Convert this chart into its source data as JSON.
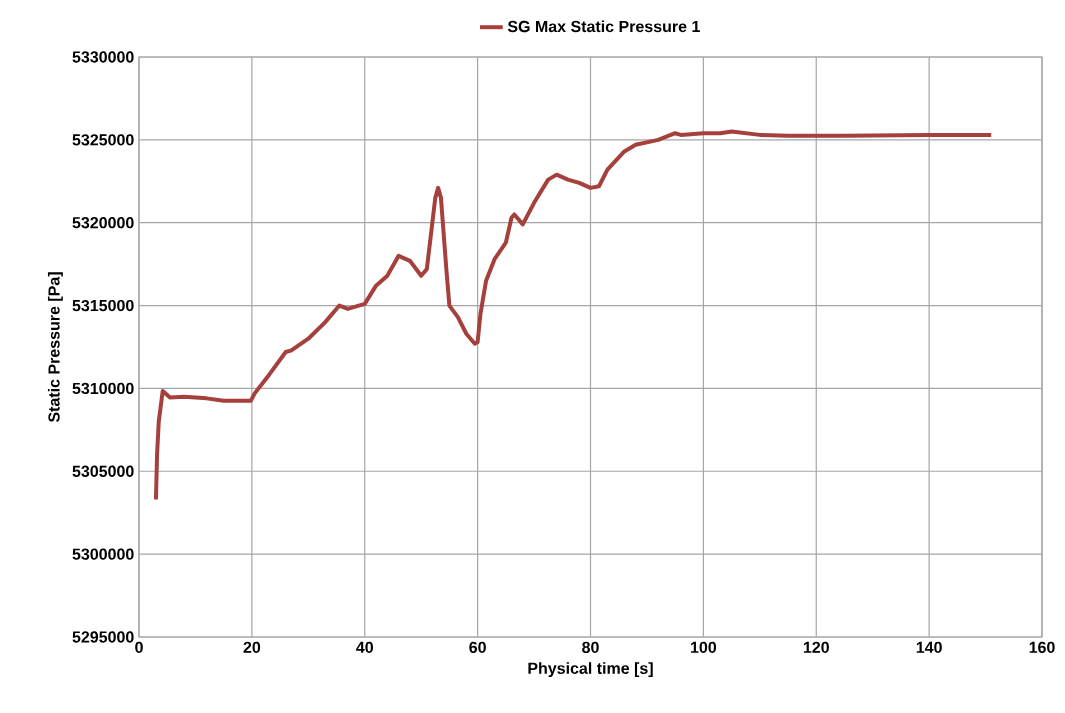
{
  "chart_data": {
    "type": "line",
    "xlabel": "Physical time [s]",
    "ylabel": "Static Pressure [Pa]",
    "xlim": [
      0,
      160
    ],
    "xticks": [
      0,
      20,
      40,
      60,
      80,
      100,
      120,
      140,
      160
    ],
    "ylim": [
      5295000,
      5330000
    ],
    "yticks": [
      5295000,
      5300000,
      5305000,
      5310000,
      5315000,
      5320000,
      5325000,
      5330000
    ],
    "grid": true,
    "legend": "top",
    "series": [
      {
        "name": "SG Max Static Pressure 1",
        "color": "#a5403d",
        "x": [
          3.0,
          3.2,
          3.5,
          4.2,
          5.5,
          8,
          12,
          15,
          19.8,
          20.5,
          23,
          26,
          27,
          30,
          33,
          35.5,
          37,
          40,
          42,
          44,
          46,
          48,
          50,
          51,
          52.5,
          53,
          53.5,
          54.5,
          55,
          56.5,
          58,
          59.5,
          60,
          60.5,
          61.5,
          63,
          65,
          66,
          66.5,
          68,
          70,
          72.5,
          74,
          76,
          78,
          80,
          81.5,
          83,
          86,
          88,
          92,
          95,
          96,
          100,
          103,
          105,
          110,
          115,
          125,
          140,
          151
        ],
        "values": [
          5303300,
          5306000,
          5308000,
          5309850,
          5309450,
          5309500,
          5309400,
          5309250,
          5309250,
          5309700,
          5310800,
          5312200,
          5312300,
          5313000,
          5314000,
          5315000,
          5314800,
          5315100,
          5316200,
          5316800,
          5318000,
          5317700,
          5316800,
          5317200,
          5321500,
          5322100,
          5321500,
          5317000,
          5315000,
          5314300,
          5313300,
          5312700,
          5312800,
          5314500,
          5316500,
          5317800,
          5318800,
          5320300,
          5320500,
          5319900,
          5321200,
          5322600,
          5322900,
          5322600,
          5322400,
          5322100,
          5322200,
          5323200,
          5324300,
          5324700,
          5325000,
          5325400,
          5325300,
          5325400,
          5325400,
          5325500,
          5325300,
          5325250,
          5325250,
          5325300,
          5325300
        ]
      }
    ]
  }
}
